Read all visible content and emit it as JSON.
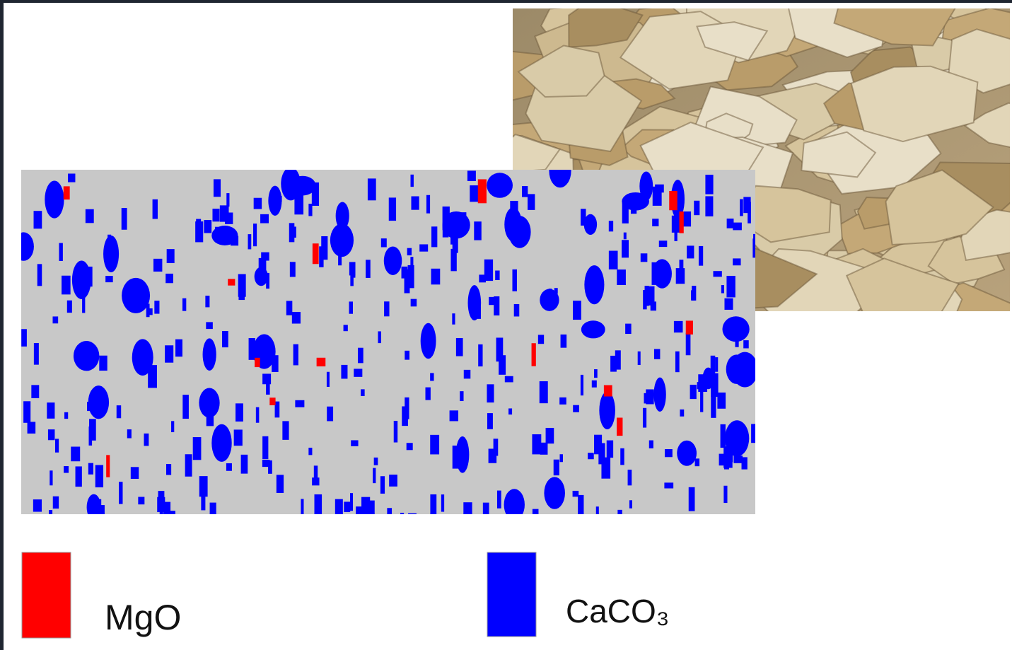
{
  "legend": {
    "items": [
      {
        "label": "MgO",
        "color": "#ff0000"
      },
      {
        "label": "CaCO₃",
        "color": "#0000ff"
      }
    ]
  }
}
